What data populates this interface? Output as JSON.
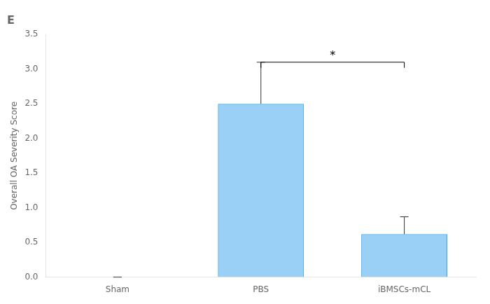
{
  "chart_data": {
    "type": "bar",
    "title": "E",
    "categories": [
      "Sham",
      "PBS",
      "iBMSCs-mCL"
    ],
    "values": [
      0.0,
      2.5,
      0.62
    ],
    "errors": [
      0.0,
      0.6,
      0.25
    ],
    "y_label": "Overall OA Severity Score",
    "ylim": [
      0,
      3.5
    ],
    "yticks": [
      {
        "value": 0.0,
        "label": "0.0"
      },
      0.5,
      {
        "value": 1.0,
        "label": "1.0"
      },
      1.5,
      {
        "value": 2.0,
        "label": "2.0"
      },
      2.5,
      {
        "value": 3.0,
        "label": "3.0"
      },
      3.5
    ],
    "annotations": [
      {
        "text": "*",
        "between": [
          "PBS",
          "iBMSCs-mCL"
        ],
        "y": 3.1
      }
    ],
    "grid": false
  }
}
